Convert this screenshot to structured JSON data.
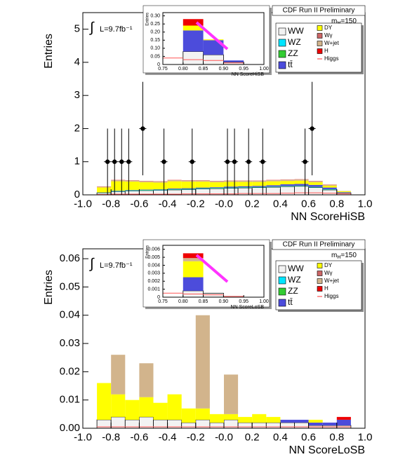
{
  "chart_data": [
    {
      "type": "histogram",
      "header": "CDF Run II Preliminary",
      "lumi_int": "∫",
      "lumi": "L=9.7fb⁻¹",
      "mass_m": "m",
      "mass_sub": "H",
      "mass_value": "=150",
      "xlabel": "NN ScoreHiSB",
      "ylabel": "Entries",
      "xlim": [
        -1,
        1
      ],
      "ylim": [
        0,
        5.5
      ],
      "xticks": [
        {
          "value": -1,
          "label": "-1.0"
        },
        -0.8,
        -0.6,
        -0.4,
        -0.2,
        {
          "value": 0,
          "label": "-0.0"
        },
        0.2,
        0.4,
        0.6,
        0.8,
        {
          "value": 1,
          "label": "1.0"
        }
      ],
      "yticks": [
        0,
        1,
        2,
        3,
        4,
        5
      ],
      "bins": [
        -1,
        -0.9,
        -0.8,
        -0.7,
        -0.6,
        -0.5,
        -0.4,
        -0.3,
        -0.2,
        -0.1,
        0,
        0.1,
        0.2,
        0.3,
        0.4,
        0.5,
        0.6,
        0.7,
        0.8,
        0.9,
        1
      ],
      "series": [
        {
          "name": "WW",
          "color": "#f2f2f2",
          "values": [
            0,
            0.06,
            0.1,
            0.12,
            0.13,
            0.14,
            0.15,
            0.16,
            0.18,
            0.19,
            0.2,
            0.21,
            0.22,
            0.23,
            0.25,
            0.26,
            0.22,
            0.15,
            0.06,
            0
          ]
        },
        {
          "name": "WZ",
          "color": "#00e5ff",
          "values": [
            0,
            0.005,
            0.01,
            0.01,
            0.01,
            0.01,
            0.01,
            0.01,
            0.01,
            0.01,
            0.01,
            0.01,
            0.01,
            0.01,
            0.01,
            0.01,
            0.01,
            0.01,
            0,
            0
          ]
        },
        {
          "name": "ZZ",
          "color": "#33cc33",
          "values": [
            0,
            0.005,
            0.01,
            0.01,
            0.01,
            0.01,
            0.01,
            0.01,
            0.01,
            0.01,
            0.01,
            0.01,
            0.01,
            0.01,
            0.01,
            0.01,
            0.01,
            0.01,
            0,
            0
          ]
        },
        {
          "name": "tt̄",
          "color": "#4c4cdb",
          "values": [
            0,
            0.005,
            0.01,
            0.01,
            0.01,
            0.01,
            0.02,
            0.02,
            0.02,
            0.02,
            0.03,
            0.03,
            0.03,
            0.04,
            0.05,
            0.05,
            0.06,
            0.05,
            0.02,
            0
          ]
        },
        {
          "name": "DY",
          "color": "#ffff00",
          "values": [
            0,
            0.15,
            0.28,
            0.25,
            0.22,
            0.2,
            0.22,
            0.2,
            0.18,
            0.15,
            0.14,
            0.13,
            0.12,
            0.12,
            0.1,
            0.1,
            0.08,
            0.06,
            0.03,
            0
          ]
        },
        {
          "name": "Wγ",
          "color": "#cc6666",
          "values": [
            0,
            0.005,
            0.005,
            0.005,
            0.005,
            0.005,
            0.005,
            0.005,
            0.005,
            0.005,
            0.005,
            0.005,
            0.005,
            0.005,
            0.005,
            0.005,
            0.005,
            0.005,
            0,
            0
          ]
        },
        {
          "name": "W+jet",
          "color": "#d2b48c",
          "values": [
            0,
            0.02,
            0.03,
            0.03,
            0.03,
            0.03,
            0.03,
            0.03,
            0.03,
            0.03,
            0.03,
            0.03,
            0.03,
            0.03,
            0.03,
            0.03,
            0.03,
            0.02,
            0.01,
            0
          ]
        },
        {
          "name": "H",
          "color": "#ee0000",
          "values": [
            0,
            0.005,
            0.005,
            0.005,
            0.005,
            0.005,
            0.005,
            0.005,
            0.005,
            0.005,
            0.005,
            0.005,
            0.005,
            0.005,
            0.005,
            0.005,
            0.005,
            0.005,
            0,
            0
          ]
        },
        {
          "name": "Higgs",
          "color": "#ff5555",
          "style": "line",
          "values": [
            0,
            0.01,
            0.02,
            0.02,
            0.02,
            0.02,
            0.02,
            0.03,
            0.03,
            0.03,
            0.03,
            0.04,
            0.04,
            0.04,
            0.05,
            0.06,
            0.06,
            0.05,
            0.03,
            0
          ]
        }
      ],
      "points": {
        "x": [
          -0.825,
          -0.775,
          -0.725,
          -0.675,
          -0.575,
          -0.425,
          -0.225,
          0.025,
          0.075,
          0.175,
          0.275,
          0.575,
          0.625
        ],
        "y": [
          1,
          1,
          1,
          1,
          2,
          1,
          1,
          1,
          1,
          1,
          1,
          1,
          2
        ],
        "err": [
          1,
          1,
          1,
          1,
          1.41,
          1,
          1,
          1,
          1,
          1,
          1,
          1,
          1.41
        ]
      },
      "inset": {
        "xlabel": "NN ScoreHiSB",
        "ylabel": "Entries",
        "xlim": [
          0.75,
          1
        ],
        "ylim": [
          0,
          0.32
        ],
        "xticks": [
          0.75,
          {
            "value": 0.8,
            "label": "0.80"
          },
          0.85,
          {
            "value": 0.9,
            "label": "0.90"
          },
          0.95,
          {
            "value": 1,
            "label": "1.00"
          }
        ],
        "yticks": [
          0,
          0.05,
          {
            "value": 0.1,
            "label": "0.10"
          },
          0.15,
          {
            "value": 0.2,
            "label": "0.20"
          },
          0.25,
          {
            "value": 0.3,
            "label": "0.30"
          }
        ],
        "bins": [
          0.75,
          0.8,
          0.85,
          0.9,
          0.95,
          1
        ],
        "series": [
          {
            "color": "#f2f2f2",
            "values": [
              0,
              0.08,
              0.06,
              0.015,
              0
            ]
          },
          {
            "color": "#4c4cdb",
            "values": [
              0,
              0.13,
              0.09,
              0.01,
              0
            ]
          },
          {
            "color": "#ffff00",
            "values": [
              0,
              0.03,
              0.005,
              0,
              0
            ]
          },
          {
            "color": "#ee0000",
            "values": [
              0,
              0.04,
              0,
              0,
              0
            ]
          },
          {
            "color": "#ff5555",
            "style": "line",
            "values": [
              0.04,
              0.03,
              0.025,
              0.01,
              0
            ]
          }
        ]
      }
    },
    {
      "type": "histogram",
      "header": "CDF Run II Preliminary",
      "lumi_int": "∫",
      "lumi": "L=9.7fb⁻¹",
      "mass_m": "m",
      "mass_sub": "H",
      "mass_value": "=150",
      "xlabel": "NN ScoreLoSB",
      "ylabel": "Entries",
      "xlim": [
        -1,
        1
      ],
      "ylim": [
        0,
        0.0635
      ],
      "xticks": [
        {
          "value": -1,
          "label": "-1.0"
        },
        -0.8,
        -0.6,
        -0.4,
        -0.2,
        {
          "value": 0,
          "label": "-0.0"
        },
        0.2,
        0.4,
        0.6,
        0.8,
        {
          "value": 1,
          "label": "1.0"
        }
      ],
      "yticks": [
        {
          "value": 0,
          "label": "0.00"
        },
        0.01,
        0.02,
        0.03,
        0.04,
        0.05,
        0.06
      ],
      "bins": [
        -1,
        -0.9,
        -0.8,
        -0.7,
        -0.6,
        -0.5,
        -0.4,
        -0.3,
        -0.2,
        -0.1,
        0,
        0.1,
        0.2,
        0.3,
        0.4,
        0.5,
        0.6,
        0.7,
        0.8,
        0.9,
        1
      ],
      "series": [
        {
          "name": "WW",
          "color": "#f2f2f2",
          "values": [
            0,
            0.003,
            0.004,
            0.003,
            0.004,
            0.003,
            0.003,
            0.002,
            0.003,
            0.002,
            0.003,
            0.002,
            0.002,
            0.002,
            0.002,
            0.002,
            0.001,
            0.001,
            0.001,
            0
          ]
        },
        {
          "name": "WZ",
          "color": "#00e5ff",
          "values": [
            0,
            0,
            0,
            0,
            0,
            0,
            0,
            0,
            0,
            0,
            0,
            0,
            0,
            0,
            0,
            0,
            0,
            0,
            0,
            0
          ]
        },
        {
          "name": "ZZ",
          "color": "#33cc33",
          "values": [
            0,
            0,
            0,
            0,
            0,
            0,
            0,
            0,
            0,
            0,
            0,
            0,
            0,
            0,
            0,
            0,
            0,
            0,
            0,
            0
          ]
        },
        {
          "name": "tt̄",
          "color": "#4c4cdb",
          "values": [
            0,
            0,
            0,
            0,
            0,
            0,
            0,
            0,
            0,
            0,
            0,
            0,
            0,
            0,
            0.001,
            0.001,
            0.001,
            0.001,
            0.002,
            0
          ]
        },
        {
          "name": "DY",
          "color": "#ffff00",
          "values": [
            0,
            0.013,
            0.008,
            0.007,
            0.007,
            0.006,
            0.009,
            0.005,
            0.004,
            0.003,
            0.002,
            0.002,
            0.003,
            0.002,
            0,
            0,
            0.001,
            0,
            0,
            0
          ]
        },
        {
          "name": "Wγ",
          "color": "#cc6666",
          "values": [
            0,
            0,
            0,
            0,
            0,
            0,
            0,
            0,
            0,
            0,
            0,
            0,
            0,
            0,
            0,
            0,
            0,
            0,
            0,
            0
          ]
        },
        {
          "name": "W+jet",
          "color": "#d2b48c",
          "values": [
            0,
            0,
            0.014,
            0,
            0.012,
            0,
            0,
            0,
            0.033,
            0,
            0.014,
            0,
            0,
            0,
            0,
            0,
            0,
            0,
            0,
            0
          ]
        },
        {
          "name": "H",
          "color": "#ee0000",
          "values": [
            0,
            0,
            0,
            0,
            0,
            0,
            0,
            0,
            0,
            0,
            0,
            0,
            0,
            0,
            0,
            0,
            0,
            0,
            0.001,
            0
          ]
        },
        {
          "name": "Higgs",
          "color": "#ff5555",
          "style": "line",
          "values": [
            0,
            0.0005,
            0.0005,
            0.0005,
            0.0005,
            0.0005,
            0.0005,
            0.0005,
            0.0005,
            0.0005,
            0.0005,
            0.0005,
            0.0005,
            0.0005,
            0.0005,
            0.0005,
            0.0005,
            0.0005,
            0.0005,
            0
          ]
        }
      ],
      "inset": {
        "xlabel": "NN ScoreLoSB",
        "ylabel": "Entries",
        "xlim": [
          0.75,
          1
        ],
        "ylim": [
          0,
          0.0065
        ],
        "xticks": [
          0.75,
          {
            "value": 0.8,
            "label": "0.80"
          },
          0.85,
          {
            "value": 0.9,
            "label": "0.90"
          },
          0.95,
          {
            "value": 1,
            "label": "1.00"
          }
        ],
        "yticks": [
          0,
          0.001,
          0.002,
          0.003,
          0.004,
          0.005,
          0.006
        ],
        "bins": [
          0.75,
          0.8,
          0.85,
          0.9,
          0.95,
          1
        ],
        "series": [
          {
            "color": "#f2f2f2",
            "values": [
              0,
              0.0008,
              0.0005,
              0,
              0
            ]
          },
          {
            "color": "#4c4cdb",
            "values": [
              0,
              0.0017,
              0,
              0,
              0
            ]
          },
          {
            "color": "#ffff00",
            "values": [
              0,
              0.002,
              0,
              0,
              0
            ]
          },
          {
            "color": "#d2b48c",
            "values": [
              0,
              0.0004,
              0,
              0,
              0
            ]
          },
          {
            "color": "#ee0000",
            "values": [
              0,
              0.0006,
              0,
              0,
              0
            ]
          },
          {
            "color": "#ff5555",
            "style": "line",
            "values": [
              0.0005,
              0.0004,
              0.0003,
              0.0001,
              0
            ]
          }
        ]
      }
    }
  ]
}
